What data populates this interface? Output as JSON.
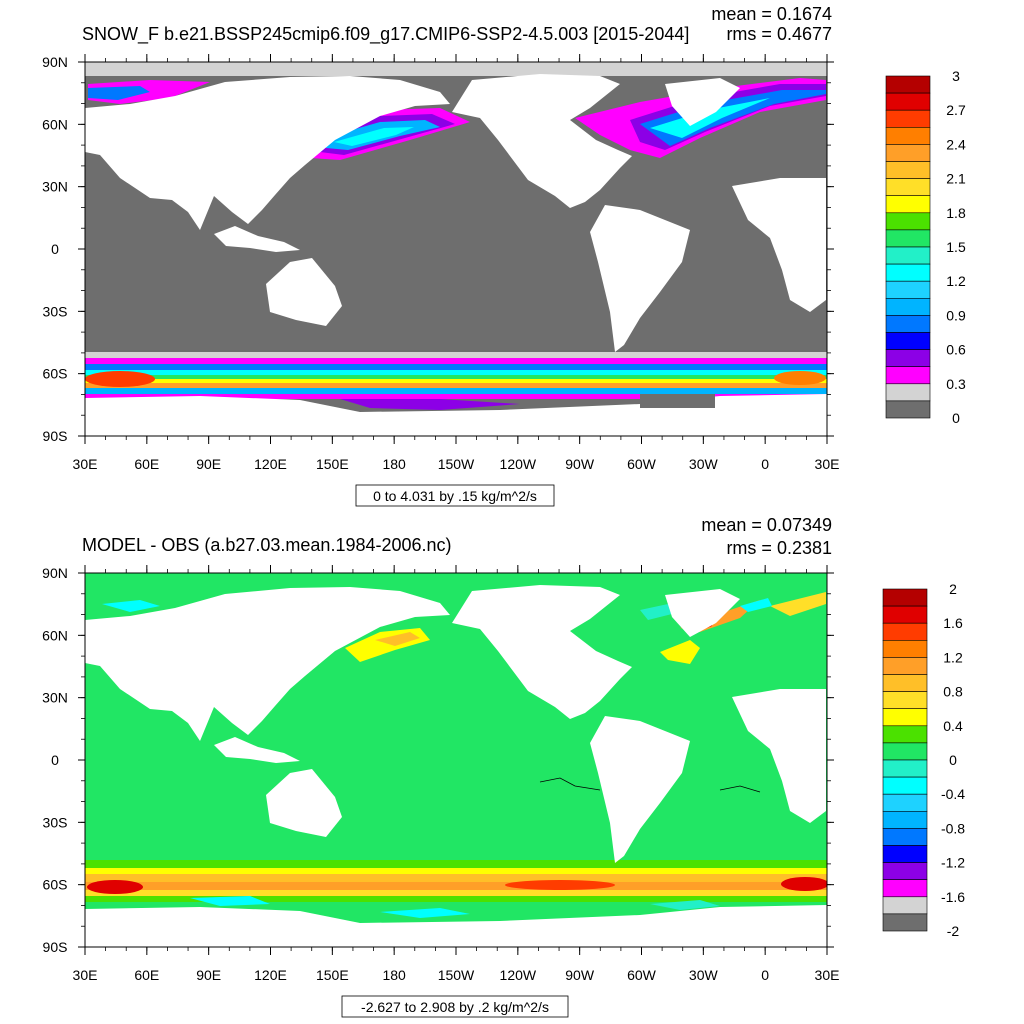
{
  "top_panel": {
    "title": "SNOW_F b.e21.BSSP245cmip6.f09_g17.CMIP6-SSP2-4.5.003 [2015-2044]",
    "mean": "mean = 0.1674",
    "rms": "rms = 0.4677",
    "range_label": "0 to 4.031 by .15 kg/m^2/s",
    "colorbar_labels": [
      "3",
      "2.7",
      "2.4",
      "2.1",
      "1.8",
      "1.5",
      "1.2",
      "0.9",
      "0.6",
      "0.3",
      "0"
    ],
    "colorbar_colors": [
      "#b40000",
      "#e00000",
      "#ff3c00",
      "#ff7f00",
      "#ff9f28",
      "#ffbf28",
      "#ffdf28",
      "#ffff00",
      "#4be100",
      "#21e664",
      "#22f0c8",
      "#00ffff",
      "#1ed2ff",
      "#00b4ff",
      "#0078ff",
      "#0000ff",
      "#8c00e6",
      "#ff00ff",
      "#d3d3d3",
      "#6e6e6e"
    ]
  },
  "bottom_panel": {
    "title": "MODEL - OBS (a.b27.03.mean.1984-2006.nc)",
    "mean": "mean = 0.07349",
    "rms": "rms = 0.2381",
    "range_label": "-2.627 to 2.908 by .2 kg/m^2/s",
    "colorbar_labels": [
      "2",
      "1.6",
      "1.2",
      "0.8",
      "0.4",
      "0",
      "-0.4",
      "-0.8",
      "-1.2",
      "-1.6",
      "-2"
    ],
    "colorbar_colors": [
      "#b40000",
      "#e00000",
      "#ff3c00",
      "#ff7f00",
      "#ff9f28",
      "#ffbf28",
      "#ffdf28",
      "#ffff00",
      "#4be100",
      "#21e664",
      "#22f0c8",
      "#00ffff",
      "#1ed2ff",
      "#00b4ff",
      "#0078ff",
      "#0000ff",
      "#8c00e6",
      "#ff00ff",
      "#d3d3d3",
      "#6e6e6e"
    ]
  },
  "axes": {
    "lat_labels": [
      "90N",
      "60N",
      "30N",
      "0",
      "30S",
      "60S",
      "90S"
    ],
    "lon_labels": [
      "30E",
      "60E",
      "90E",
      "120E",
      "150E",
      "180",
      "150W",
      "120W",
      "90W",
      "60W",
      "30W",
      "0",
      "30E"
    ]
  },
  "map_colors": {
    "ocean_top": "#6e6e6e",
    "ocean_bottom": "#21e664",
    "land": "#ffffff"
  }
}
